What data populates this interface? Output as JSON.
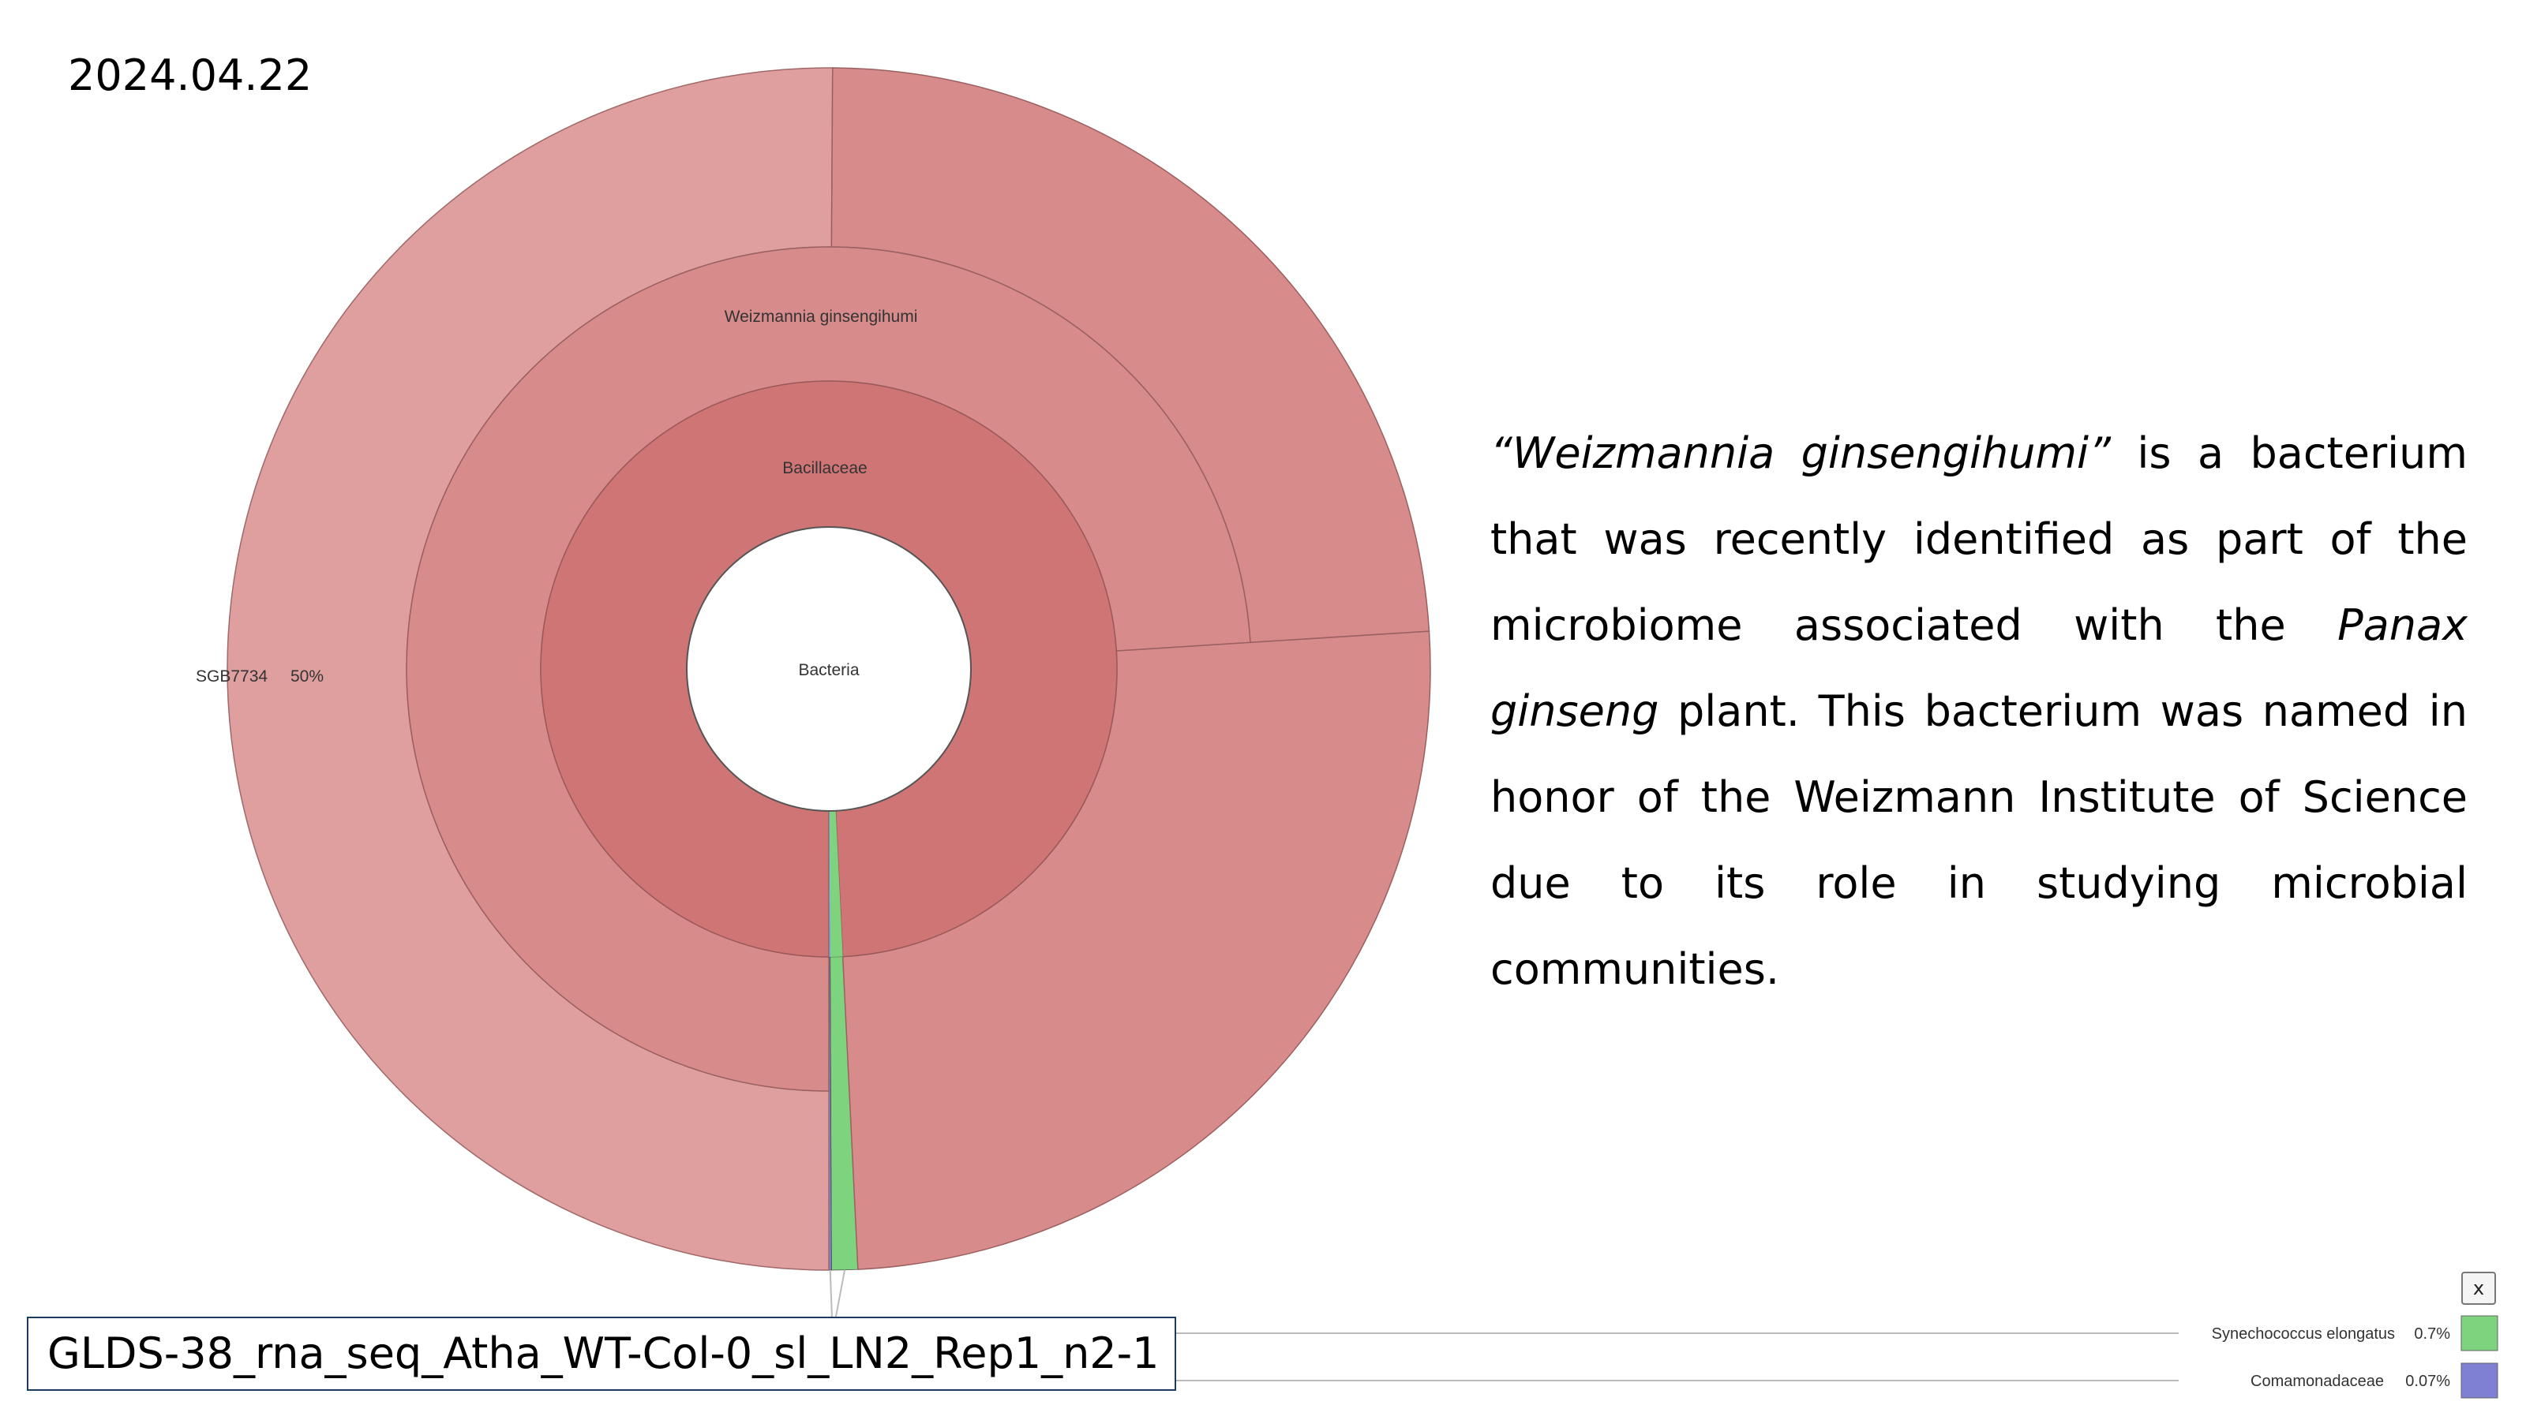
{
  "date": "2024.04.22",
  "description": {
    "species": "“Weizmannia ginsengihumi”",
    "part1": " is a bacterium that was recently identified as part of the microbiome associated with the ",
    "host": "Panax ginseng",
    "part2": " plant. This bacterium was named in honor of the Weizmann Institute of Science due to its role in studying microbial communities."
  },
  "sample_name": "GLDS-38_rna_seq_Atha_WT-Col-0_sl_LN2_Rep1_n2-1",
  "close_label": "x",
  "colors": {
    "bacteria": "#ffffff",
    "bacillaceae": "#d07575",
    "weizmannia": "#d88b8b",
    "sgb7734": "#df9f9f",
    "synechococcus": "#7ed37e",
    "comamonadaceae": "#7f7fd4"
  },
  "chart_data": {
    "type": "sunburst",
    "title": "",
    "root": "Bacteria",
    "rings": [
      {
        "level": 1,
        "segments": [
          {
            "label": "Bacillaceae",
            "percent": 99.23,
            "color_key": "bacillaceae"
          },
          {
            "label": "Synechococcus elongatus",
            "percent": 0.7,
            "color_key": "synechococcus"
          },
          {
            "label": "Comamonadaceae",
            "percent": 0.07,
            "color_key": "comamonadaceae"
          }
        ]
      },
      {
        "level": 2,
        "segments": [
          {
            "label": "Weizmannia ginsengihumi",
            "percent": 74.0,
            "color_key": "weizmannia"
          }
        ]
      },
      {
        "level": 3,
        "segments": [
          {
            "label": "SGB7734",
            "percent": 50,
            "color_key": "sgb7734"
          }
        ]
      }
    ],
    "labels": [
      {
        "text": "Bacteria"
      },
      {
        "text": "Bacillaceae"
      },
      {
        "text": "Weizmannia ginsengihumi"
      },
      {
        "text": "SGB7734",
        "value_text": "50%"
      }
    ],
    "legend": [
      {
        "name": "Synechococcus elongatus",
        "value_text": "0.7%",
        "color_key": "synechococcus"
      },
      {
        "name": "Comamonadaceae",
        "value_text": "0.07%",
        "color_key": "comamonadaceae"
      }
    ]
  }
}
